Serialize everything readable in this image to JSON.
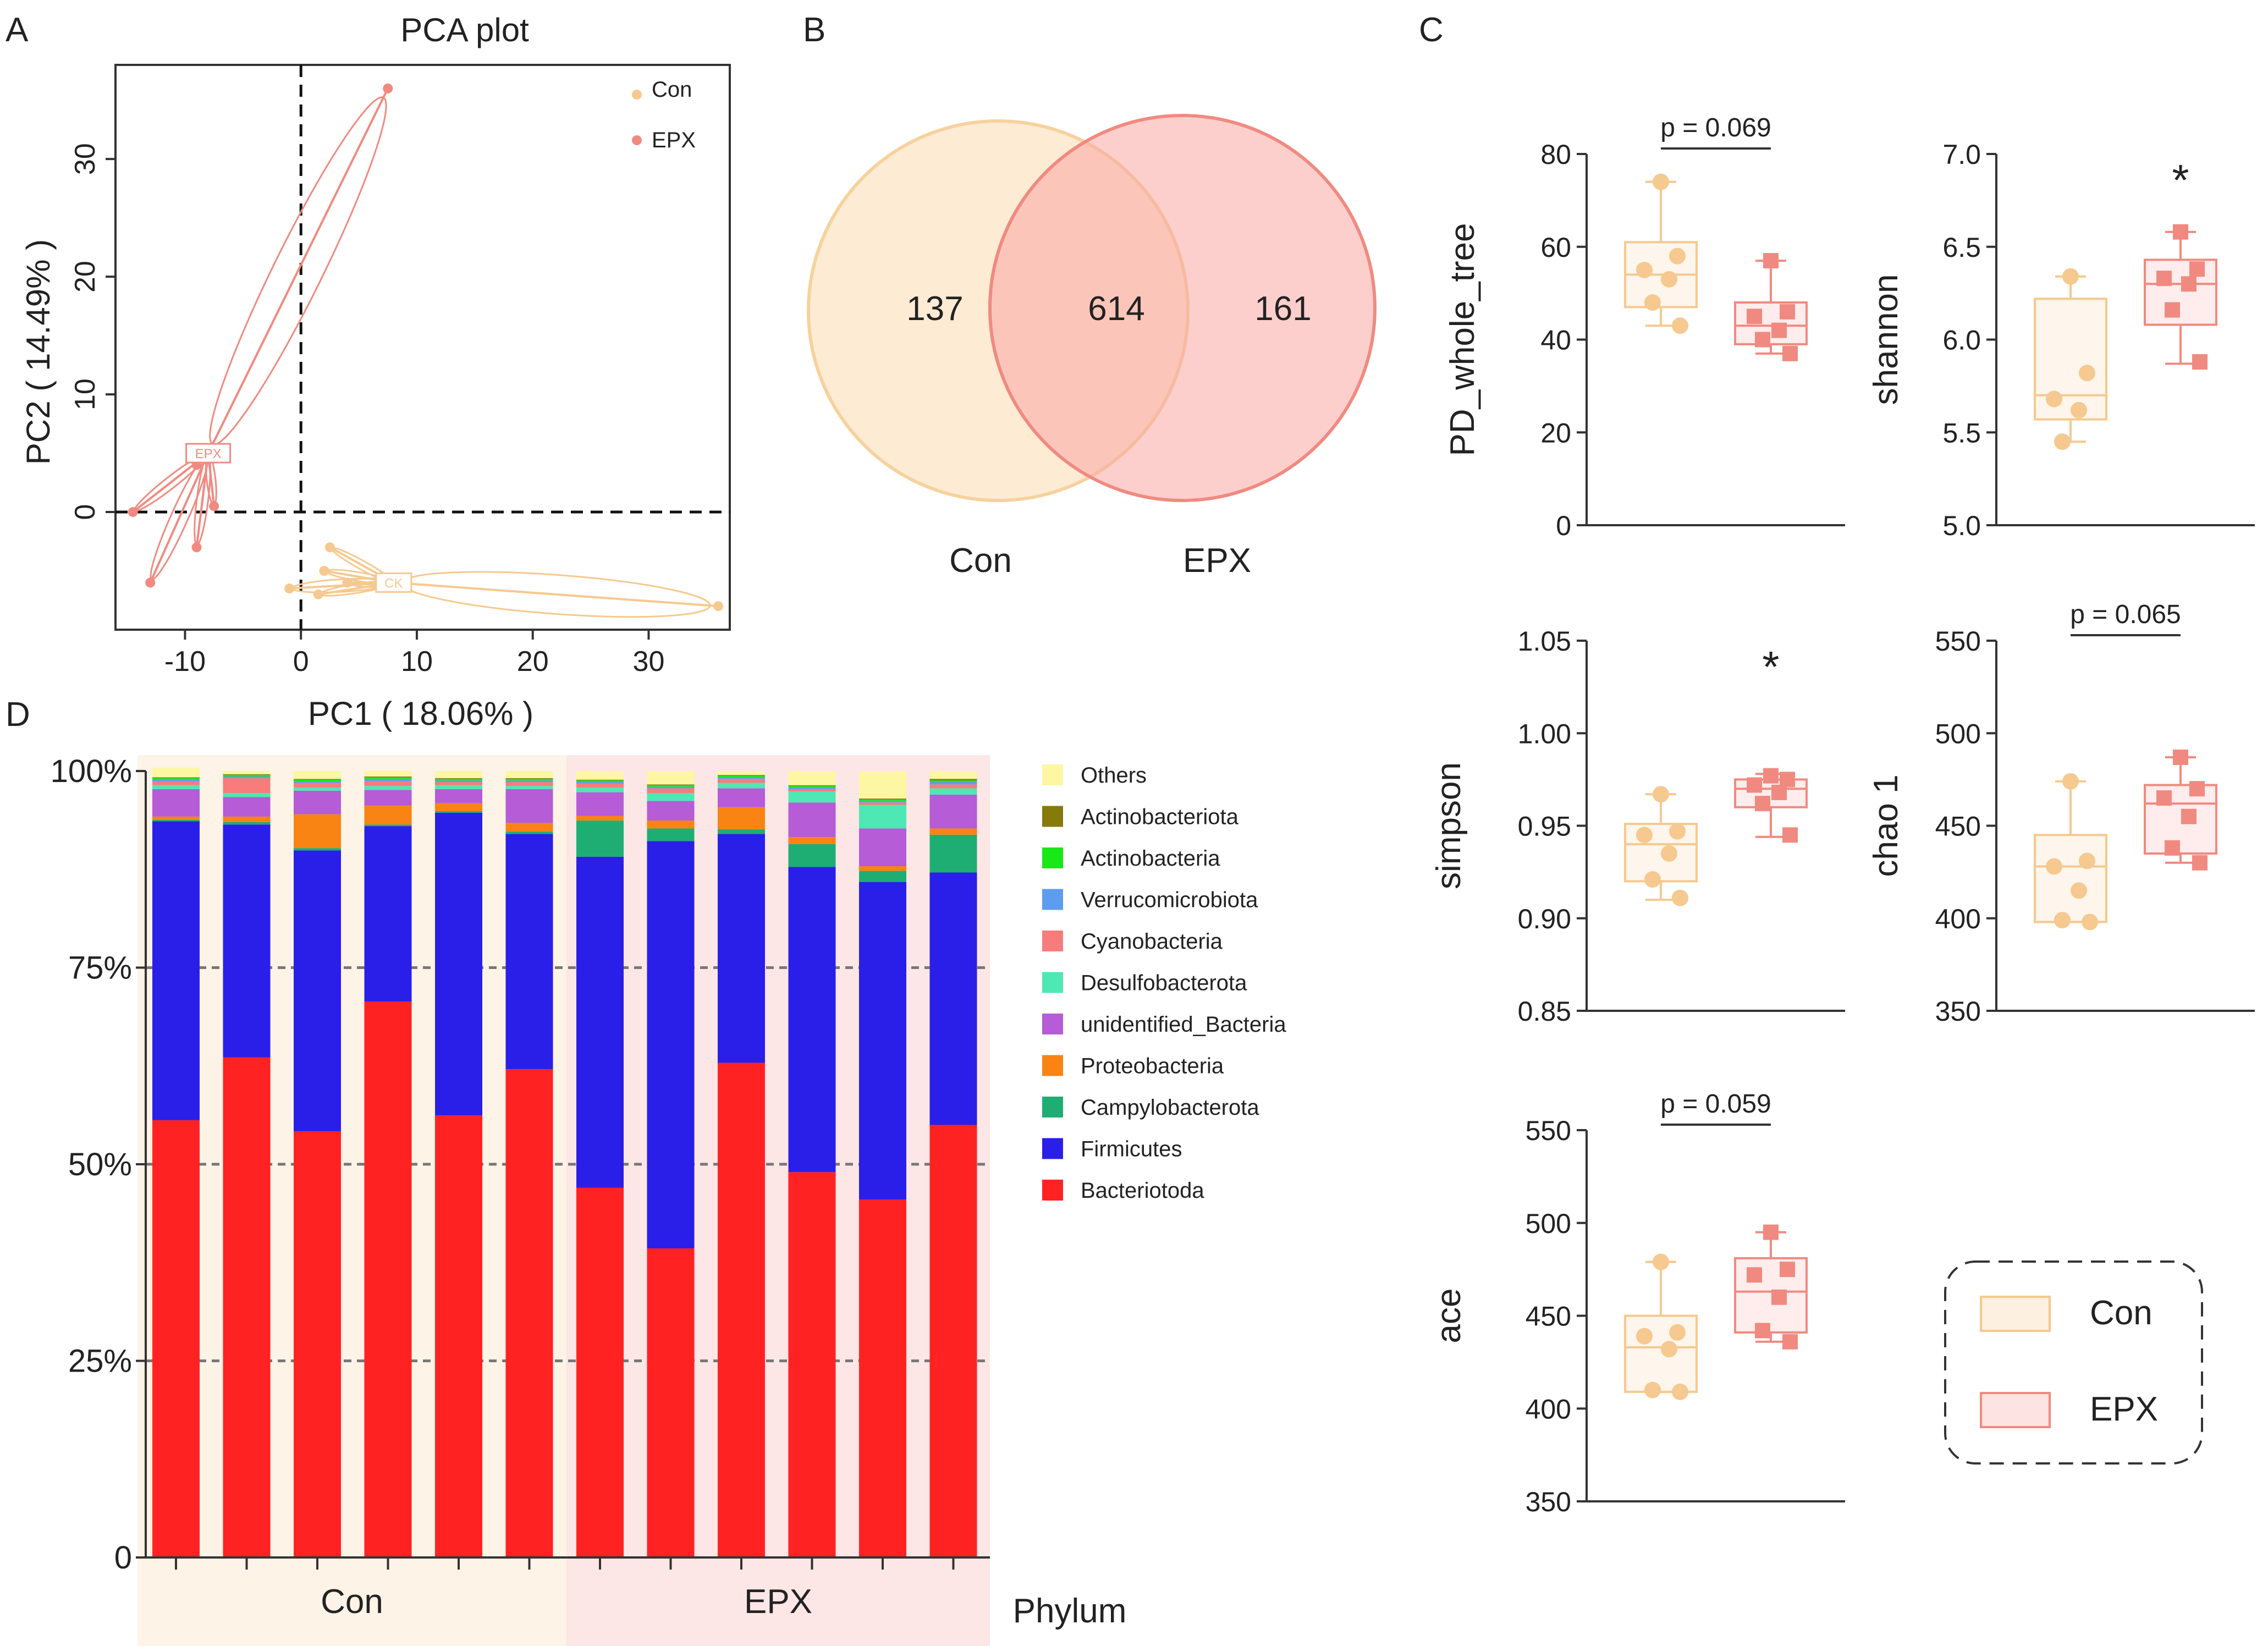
{
  "panel_labels": {
    "a": "A",
    "b": "B",
    "c": "C",
    "d": "D"
  },
  "colors": {
    "con": "#F5C98F",
    "epx": "#F08A80",
    "con_fill": "#FCE9D2",
    "epx_fill": "#FAD0CC",
    "con_bg": "#FDF3E6",
    "epx_bg": "#FDE6E6"
  },
  "pca": {
    "title": "PCA plot",
    "xlabel": "PC1 ( 18.06% )",
    "ylabel": "PC2 ( 14.49% )",
    "xticks": [
      "-10",
      "0",
      "10",
      "20",
      "30"
    ],
    "yticks": [
      "0",
      "10",
      "20",
      "30"
    ],
    "legend": [
      "Con",
      "EPX"
    ],
    "box_labels": [
      "EPX",
      "CK"
    ]
  },
  "venn": {
    "left_only": "137",
    "overlap": "614",
    "right_only": "161",
    "left_label": "Con",
    "right_label": "EPX"
  },
  "alpha_legend": {
    "con": "Con",
    "epx": "EPX"
  },
  "phylum_label": "Phylum",
  "chart_data": [
    {
      "type": "scatter",
      "title": "PCA plot",
      "xlabel": "PC1 ( 18.06% )",
      "ylabel": "PC2 ( 14.49% )",
      "xlim": [
        -16,
        37
      ],
      "ylim": [
        -10,
        38
      ],
      "series": [
        {
          "name": "Con",
          "centroid": [
            8,
            -6
          ],
          "points": [
            [
              2.5,
              -3
            ],
            [
              2,
              -5
            ],
            [
              4,
              -6
            ],
            [
              1.5,
              -7
            ],
            [
              -1,
              -6.5
            ],
            [
              36,
              -8
            ]
          ]
        },
        {
          "name": "EPX",
          "centroid": [
            -8,
            5
          ],
          "points": [
            [
              7.5,
              36
            ],
            [
              -7.5,
              0.5
            ],
            [
              -9,
              -3
            ],
            [
              -13,
              -6
            ],
            [
              -14.5,
              0
            ],
            [
              -9,
              4
            ]
          ]
        }
      ]
    },
    {
      "type": "venn",
      "sets": [
        "Con",
        "EPX"
      ],
      "values": {
        "Con only": 137,
        "Con∩EPX": 614,
        "EPX only": 161
      }
    },
    {
      "type": "box",
      "ylabel": "PD_whole_tree",
      "ylim": [
        0,
        80
      ],
      "ticks": [
        "0",
        "20",
        "40",
        "60",
        "80"
      ],
      "annotation": "p = 0.069",
      "groups": [
        {
          "name": "Con",
          "min": 43,
          "q1": 47,
          "median": 54,
          "q3": 61,
          "max": 74,
          "points": [
            74,
            58,
            55,
            53,
            48,
            43
          ]
        },
        {
          "name": "EPX",
          "min": 37,
          "q1": 39,
          "median": 43,
          "q3": 48,
          "max": 57,
          "points": [
            57,
            46,
            45,
            42,
            40,
            37
          ]
        }
      ]
    },
    {
      "type": "box",
      "ylabel": "shannon",
      "ylim": [
        5.0,
        7.0
      ],
      "ticks": [
        "5.0",
        "5.5",
        "6.0",
        "6.5",
        "7.0"
      ],
      "annotation": "*",
      "groups": [
        {
          "name": "Con",
          "min": 5.45,
          "q1": 5.57,
          "median": 5.7,
          "q3": 6.22,
          "max": 6.34,
          "points": [
            6.34,
            5.82,
            5.68,
            5.62,
            5.45
          ]
        },
        {
          "name": "EPX",
          "min": 5.87,
          "q1": 6.08,
          "median": 6.3,
          "q3": 6.43,
          "max": 6.58,
          "points": [
            6.58,
            6.38,
            6.33,
            6.3,
            6.16,
            5.88
          ]
        }
      ]
    },
    {
      "type": "box",
      "ylabel": "simpson",
      "ylim": [
        0.85,
        1.05
      ],
      "ticks": [
        "0.85",
        "0.90",
        "0.95",
        "1.00",
        "1.05"
      ],
      "annotation": "*",
      "groups": [
        {
          "name": "Con",
          "min": 0.91,
          "q1": 0.92,
          "median": 0.94,
          "q3": 0.951,
          "max": 0.967,
          "points": [
            0.967,
            0.947,
            0.945,
            0.935,
            0.921,
            0.911
          ]
        },
        {
          "name": "EPX",
          "min": 0.944,
          "q1": 0.96,
          "median": 0.97,
          "q3": 0.975,
          "max": 0.978,
          "points": [
            0.977,
            0.975,
            0.972,
            0.968,
            0.962,
            0.945
          ]
        }
      ]
    },
    {
      "type": "box",
      "ylabel": "chao 1",
      "ylim": [
        350,
        550
      ],
      "ticks": [
        "350",
        "400",
        "450",
        "500",
        "550"
      ],
      "annotation": "p = 0.065",
      "groups": [
        {
          "name": "Con",
          "min": 398,
          "q1": 398,
          "median": 428,
          "q3": 445,
          "max": 474,
          "points": [
            474,
            431,
            428,
            415,
            399,
            398
          ]
        },
        {
          "name": "EPX",
          "min": 430,
          "q1": 435,
          "median": 462,
          "q3": 472,
          "max": 487,
          "points": [
            487,
            470,
            465,
            455,
            438,
            430
          ]
        }
      ]
    },
    {
      "type": "box",
      "ylabel": "ace",
      "ylim": [
        350,
        550
      ],
      "ticks": [
        "350",
        "400",
        "450",
        "500",
        "550"
      ],
      "annotation": "p = 0.059",
      "groups": [
        {
          "name": "Con",
          "min": 409,
          "q1": 409,
          "median": 433,
          "q3": 450,
          "max": 479,
          "points": [
            479,
            441,
            439,
            432,
            410,
            409
          ]
        },
        {
          "name": "EPX",
          "min": 436,
          "q1": 441,
          "median": 463,
          "q3": 481,
          "max": 495,
          "points": [
            495,
            475,
            472,
            460,
            442,
            436
          ]
        }
      ]
    },
    {
      "type": "bar",
      "stacked": true,
      "ylabel": "",
      "ylim": [
        0,
        100
      ],
      "ticks": [
        "0",
        "25%",
        "50%",
        "75%",
        "100%"
      ],
      "group_labels": [
        "Con",
        "EPX"
      ],
      "groups": [
        6,
        6
      ],
      "stack_order": [
        "Bacteriotoda",
        "Firmicutes",
        "Campylobacterota",
        "Proteobacteria",
        "unidentified_Bacteria",
        "Desulfobacterota",
        "Cyanobacteria",
        "Verrucomicrobiota",
        "Actinobacteria",
        "Actinobacteriota",
        "Others"
      ],
      "legend_order": [
        "Others",
        "Actinobacteriota",
        "Actinobacteria",
        "Verrucomicrobiota",
        "Cyanobacteria",
        "Desulfobacterota",
        "unidentified_Bacteria",
        "Proteobacteria",
        "Campylobacterota",
        "Firmicutes",
        "Bacteriotoda"
      ],
      "series_colors": {
        "Bacteriotoda": "#FF2222",
        "Firmicutes": "#2A1FE8",
        "Campylobacterota": "#1EAE73",
        "Proteobacteria": "#F98413",
        "unidentified_Bacteria": "#B55CD6",
        "Desulfobacterota": "#4DE8B3",
        "Cyanobacteria": "#F77C7C",
        "Verrucomicrobiota": "#5C9DF0",
        "Actinobacteria": "#18E818",
        "Actinobacteriota": "#857A0A",
        "Others": "#FDF6A3"
      },
      "samples": [
        {
          "Bacteriotoda": 55.6,
          "Firmicutes": 38.0,
          "Campylobacterota": 0.2,
          "Proteobacteria": 0.4,
          "unidentified_Bacteria": 3.5,
          "Desulfobacterota": 0.5,
          "Cyanobacteria": 0.5,
          "Verrucomicrobiota": 0.2,
          "Actinobacteria": 0.2,
          "Actinobacteriota": 0.1,
          "Others": 1.2
        },
        {
          "Bacteriotoda": 63.6,
          "Firmicutes": 29.6,
          "Campylobacterota": 0.3,
          "Proteobacteria": 0.7,
          "unidentified_Bacteria": 2.5,
          "Desulfobacterota": 0.5,
          "Cyanobacteria": 1.9,
          "Verrucomicrobiota": 0.2,
          "Actinobacteria": 0.2,
          "Actinobacteriota": 0.1,
          "Others": 0.4
        },
        {
          "Bacteriotoda": 54.2,
          "Firmicutes": 35.7,
          "Campylobacterota": 0.3,
          "Proteobacteria": 4.3,
          "unidentified_Bacteria": 3.0,
          "Desulfobacterota": 0.4,
          "Cyanobacteria": 0.6,
          "Verrucomicrobiota": 0.2,
          "Actinobacteria": 0.2,
          "Actinobacteriota": 0.1,
          "Others": 1.0
        },
        {
          "Bacteriotoda": 70.7,
          "Firmicutes": 22.3,
          "Campylobacterota": 0.2,
          "Proteobacteria": 2.4,
          "unidentified_Bacteria": 2.0,
          "Desulfobacterota": 0.5,
          "Cyanobacteria": 0.6,
          "Verrucomicrobiota": 0.3,
          "Actinobacteria": 0.2,
          "Actinobacteriota": 0.1,
          "Others": 0.7
        },
        {
          "Bacteriotoda": 56.2,
          "Firmicutes": 38.5,
          "Campylobacterota": 0.2,
          "Proteobacteria": 1.0,
          "unidentified_Bacteria": 1.8,
          "Desulfobacterota": 0.5,
          "Cyanobacteria": 0.4,
          "Verrucomicrobiota": 0.2,
          "Actinobacteria": 0.2,
          "Actinobacteriota": 0.1,
          "Others": 0.9
        },
        {
          "Bacteriotoda": 62.1,
          "Firmicutes": 29.9,
          "Campylobacterota": 0.3,
          "Proteobacteria": 1.1,
          "unidentified_Bacteria": 4.3,
          "Desulfobacterota": 0.4,
          "Cyanobacteria": 0.5,
          "Verrucomicrobiota": 0.2,
          "Actinobacteria": 0.2,
          "Actinobacteriota": 0.1,
          "Others": 0.9
        },
        {
          "Bacteriotoda": 47.0,
          "Firmicutes": 42.1,
          "Campylobacterota": 4.6,
          "Proteobacteria": 0.6,
          "unidentified_Bacteria": 3.0,
          "Desulfobacterota": 0.6,
          "Cyanobacteria": 0.5,
          "Verrucomicrobiota": 0.2,
          "Actinobacteria": 0.2,
          "Actinobacteriota": 0.1,
          "Others": 1.1
        },
        {
          "Bacteriotoda": 39.3,
          "Firmicutes": 51.8,
          "Campylobacterota": 1.6,
          "Proteobacteria": 1.0,
          "unidentified_Bacteria": 2.5,
          "Desulfobacterota": 1.0,
          "Cyanobacteria": 0.6,
          "Verrucomicrobiota": 0.2,
          "Actinobacteria": 0.2,
          "Actinobacteriota": 0.1,
          "Others": 1.7
        },
        {
          "Bacteriotoda": 62.9,
          "Firmicutes": 29.1,
          "Campylobacterota": 0.6,
          "Proteobacteria": 2.8,
          "unidentified_Bacteria": 2.4,
          "Desulfobacterota": 0.7,
          "Cyanobacteria": 0.5,
          "Verrucomicrobiota": 0.2,
          "Actinobacteria": 0.2,
          "Actinobacteriota": 0.1,
          "Others": 0.5
        },
        {
          "Bacteriotoda": 49.0,
          "Firmicutes": 38.8,
          "Campylobacterota": 2.9,
          "Proteobacteria": 0.9,
          "unidentified_Bacteria": 4.4,
          "Desulfobacterota": 1.4,
          "Cyanobacteria": 0.3,
          "Verrucomicrobiota": 0.2,
          "Actinobacteria": 0.2,
          "Actinobacteriota": 0.1,
          "Others": 1.8
        },
        {
          "Bacteriotoda": 45.5,
          "Firmicutes": 40.4,
          "Campylobacterota": 1.4,
          "Proteobacteria": 0.6,
          "unidentified_Bacteria": 4.8,
          "Desulfobacterota": 3.0,
          "Cyanobacteria": 0.3,
          "Verrucomicrobiota": 0.2,
          "Actinobacteria": 0.2,
          "Actinobacteriota": 0.1,
          "Others": 3.5
        },
        {
          "Bacteriotoda": 55.0,
          "Firmicutes": 32.1,
          "Campylobacterota": 4.8,
          "Proteobacteria": 0.8,
          "unidentified_Bacteria": 4.3,
          "Desulfobacterota": 0.8,
          "Cyanobacteria": 0.5,
          "Verrucomicrobiota": 0.3,
          "Actinobacteria": 0.2,
          "Actinobacteriota": 0.2,
          "Others": 1.0
        }
      ]
    }
  ]
}
